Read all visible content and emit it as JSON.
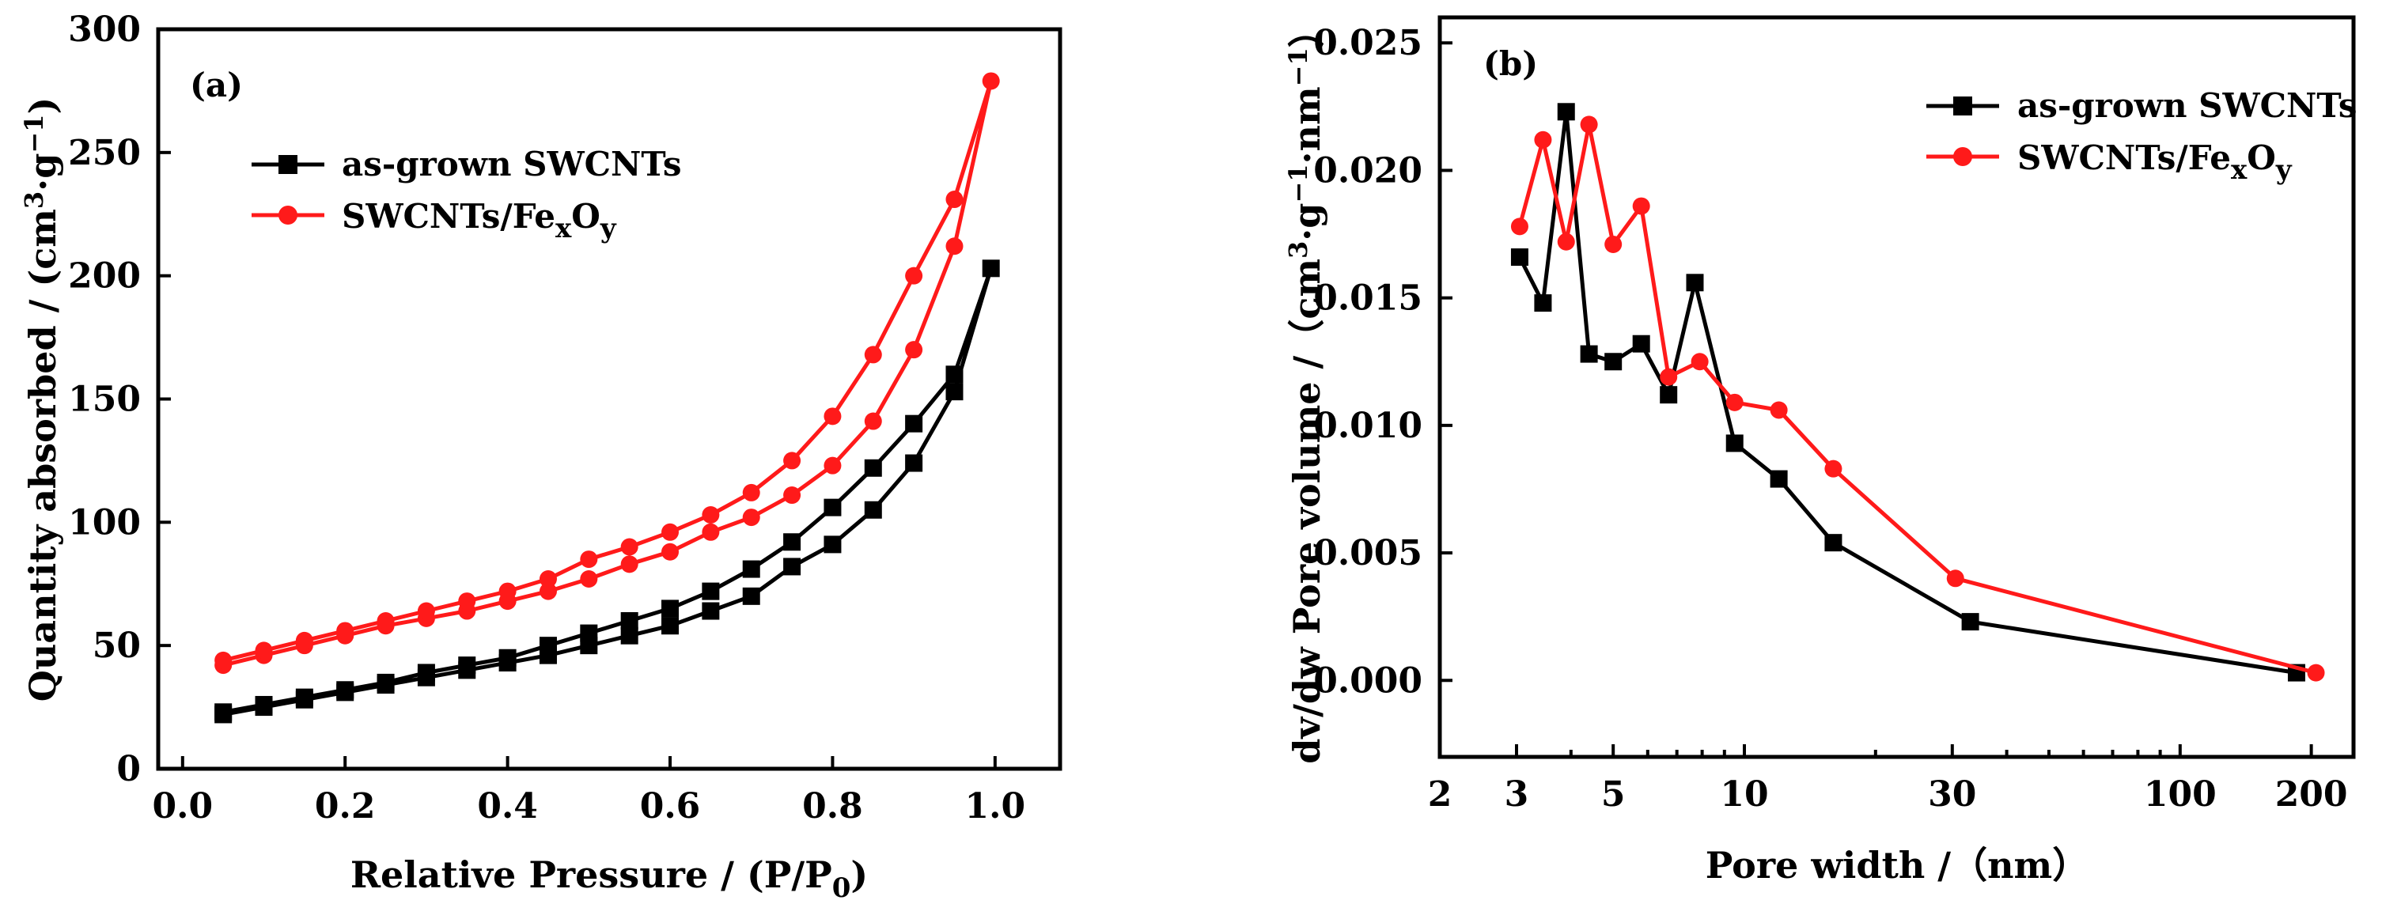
{
  "chart_data": [
    {
      "panel": "(a)",
      "type": "line",
      "xlabel": "Relative Pressure / (P/P",
      "xlabel_sub": "0",
      "xlabel_tail": ")",
      "ylabel": "Quantity absorbed / (cm",
      "ylabel_sup1": "3",
      "ylabel_mid": "·g",
      "ylabel_sup2": "−1",
      "ylabel_tail": ")",
      "xlim": [
        -0.03,
        1.08
      ],
      "ylim": [
        0,
        300
      ],
      "xticks": [
        0.0,
        0.2,
        0.4,
        0.6,
        0.8,
        1.0
      ],
      "xtick_labels": [
        "0.0",
        "0.2",
        "0.4",
        "0.6",
        "0.8",
        "1.0"
      ],
      "yticks": [
        0,
        50,
        100,
        150,
        200,
        250,
        300
      ],
      "ytick_labels": [
        "0",
        "50",
        "100",
        "150",
        "200",
        "250",
        "300"
      ],
      "legend_position": "top-left",
      "series": [
        {
          "name": "as-grown SWCNTs",
          "legend_main": "as-grown SWCNTs",
          "color": "#000000",
          "marker": "square",
          "x": [
            0.05,
            0.1,
            0.15,
            0.2,
            0.25,
            0.3,
            0.35,
            0.4,
            0.45,
            0.5,
            0.55,
            0.6,
            0.65,
            0.7,
            0.75,
            0.8,
            0.85,
            0.9,
            0.95,
            0.995,
            0.95,
            0.9,
            0.85,
            0.8,
            0.75,
            0.7,
            0.65,
            0.6,
            0.55,
            0.5,
            0.45,
            0.4,
            0.35,
            0.3,
            0.25,
            0.2,
            0.15,
            0.1,
            0.05
          ],
          "y": [
            22,
            25,
            28,
            31,
            34,
            37,
            40,
            43,
            46,
            50,
            54,
            58,
            64,
            70,
            82,
            91,
            105,
            124,
            153,
            203,
            160,
            140,
            122,
            106,
            92,
            81,
            72,
            65,
            60,
            55,
            50,
            45,
            42,
            39,
            35,
            32,
            29,
            26,
            23
          ]
        },
        {
          "name": "SWCNTs/FexOy",
          "legend_main": "SWCNTs/Fe",
          "legend_sub1": "x",
          "legend_mid": "O",
          "legend_sub2": "y",
          "color": "#ff1a1a",
          "marker": "circle",
          "x": [
            0.05,
            0.1,
            0.15,
            0.2,
            0.25,
            0.3,
            0.35,
            0.4,
            0.45,
            0.5,
            0.55,
            0.6,
            0.65,
            0.7,
            0.75,
            0.8,
            0.85,
            0.9,
            0.95,
            0.995,
            0.95,
            0.9,
            0.85,
            0.8,
            0.75,
            0.7,
            0.65,
            0.6,
            0.55,
            0.5,
            0.45,
            0.4,
            0.35,
            0.3,
            0.25,
            0.2,
            0.15,
            0.1,
            0.05
          ],
          "y": [
            42,
            46,
            50,
            54,
            58,
            61,
            64,
            68,
            72,
            77,
            83,
            88,
            96,
            102,
            111,
            123,
            141,
            170,
            212,
            279,
            231,
            200,
            168,
            143,
            125,
            112,
            103,
            96,
            90,
            85,
            77,
            72,
            68,
            64,
            60,
            56,
            52,
            48,
            44
          ]
        }
      ]
    },
    {
      "panel": "(b)",
      "type": "line",
      "xscale": "log",
      "xlabel": "Pore width /（nm）",
      "ylabel": "dv/dw Pore volume /（cm",
      "ylabel_sup1": "3",
      "ylabel_mid": "·g",
      "ylabel_sup2": "−1",
      "ylabel_mid2": "·nm",
      "ylabel_sup3": "−1",
      "ylabel_tail": "）",
      "xlim": [
        2,
        250
      ],
      "ylim": [
        -0.003,
        0.026
      ],
      "xticks": [
        2,
        3,
        5,
        10,
        30,
        100,
        200
      ],
      "xtick_labels": [
        "2",
        "3",
        "5",
        "10",
        "30",
        "100",
        "200"
      ],
      "yticks": [
        0.0,
        0.005,
        0.01,
        0.015,
        0.02,
        0.025
      ],
      "ytick_labels": [
        "0.000",
        "0.005",
        "0.010",
        "0.015",
        "0.020",
        "0.025"
      ],
      "legend_position": "top-right",
      "series": [
        {
          "name": "as-grown SWCNTs",
          "legend_main": "as-grown SWCNTs",
          "color": "#000000",
          "marker": "square",
          "x": [
            3.05,
            3.45,
            3.9,
            4.4,
            5.0,
            5.8,
            6.7,
            7.7,
            9.5,
            12.0,
            16.0,
            33.0,
            185.0
          ],
          "y": [
            0.0166,
            0.0148,
            0.0223,
            0.0128,
            0.0125,
            0.0132,
            0.0112,
            0.0156,
            0.0093,
            0.0079,
            0.0054,
            0.0023,
            0.0003
          ]
        },
        {
          "name": "SWCNTs/FexOy",
          "legend_main": "SWCNTs/Fe",
          "legend_sub1": "x",
          "legend_mid": "O",
          "legend_sub2": "y",
          "color": "#ff1a1a",
          "marker": "circle",
          "x": [
            3.05,
            3.45,
            3.9,
            4.4,
            5.0,
            5.8,
            6.7,
            7.9,
            9.5,
            12.0,
            16.0,
            30.5,
            205.0
          ],
          "y": [
            0.0178,
            0.0212,
            0.0172,
            0.0218,
            0.0171,
            0.0186,
            0.0119,
            0.0125,
            0.0109,
            0.0106,
            0.0083,
            0.004,
            0.0003
          ]
        }
      ]
    }
  ]
}
